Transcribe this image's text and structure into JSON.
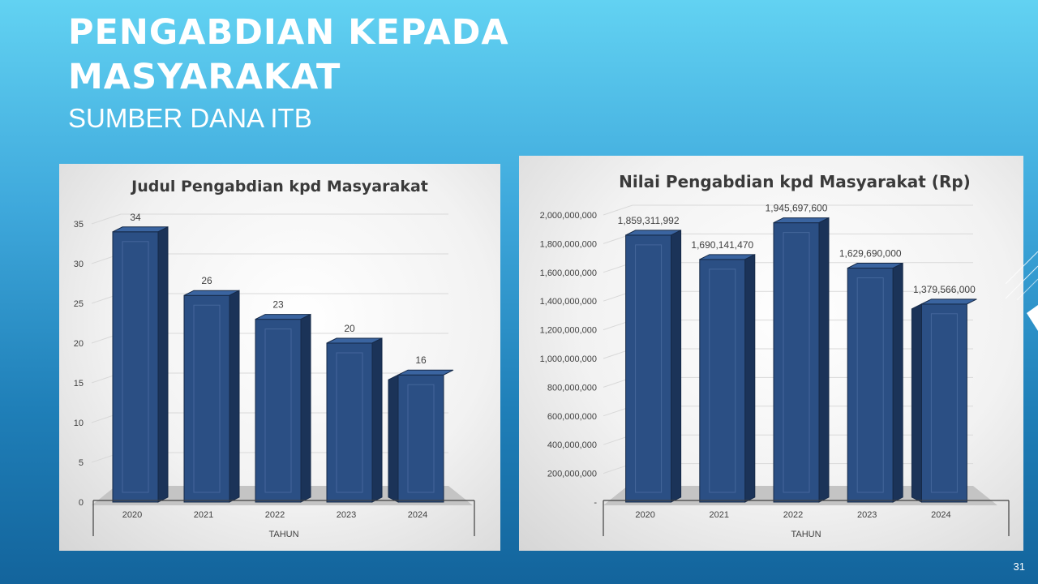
{
  "slide": {
    "title_line1": "PENGABDIAN KEPADA",
    "title_line2": "MASYARAKAT",
    "subtitle": "SUMBER DANA ITB",
    "page_number": "31"
  },
  "colors": {
    "bar_front": "#2b4f84",
    "bar_side": "#1b3358",
    "bar_top": "#3a64a0",
    "grid": "#d9d9d9",
    "text": "#404040"
  },
  "chart_data": [
    {
      "type": "bar",
      "title": "Judul Pengabdian kpd Masyarakat",
      "xlabel": "TAHUN",
      "ylabel": "",
      "categories": [
        "2020",
        "2021",
        "2022",
        "2023",
        "2024"
      ],
      "values": [
        34,
        26,
        23,
        20,
        16
      ],
      "data_labels": [
        "34",
        "26",
        "23",
        "20",
        "16"
      ],
      "y_ticks": [
        0,
        5,
        10,
        15,
        20,
        25,
        30,
        35
      ],
      "y_tick_labels": [
        "0",
        "5",
        "10",
        "15",
        "20",
        "25",
        "30",
        "35"
      ],
      "ylim": [
        0,
        35
      ],
      "grid": true,
      "legend": "none",
      "style": "3d"
    },
    {
      "type": "bar",
      "title": "Nilai Pengabdian kpd Masyarakat (Rp)",
      "xlabel": "TAHUN",
      "ylabel": "",
      "categories": [
        "2020",
        "2021",
        "2022",
        "2023",
        "2024"
      ],
      "values": [
        1859311992,
        1690141470,
        1945697600,
        1629690000,
        1379566000
      ],
      "data_labels": [
        "1,859,311,992",
        "1,690,141,470",
        "1,945,697,600",
        "1,629,690,000",
        "1,379,566,000"
      ],
      "y_ticks": [
        0,
        200000000,
        400000000,
        600000000,
        800000000,
        1000000000,
        1200000000,
        1400000000,
        1600000000,
        1800000000,
        2000000000
      ],
      "y_tick_labels": [
        "-",
        "200,000,000",
        "400,000,000",
        "600,000,000",
        "800,000,000",
        "1,000,000,000",
        "1,200,000,000",
        "1,400,000,000",
        "1,600,000,000",
        "1,800,000,000",
        "2,000,000,000"
      ],
      "ylim": [
        0,
        2000000000
      ],
      "grid": true,
      "legend": "none",
      "style": "3d"
    }
  ]
}
